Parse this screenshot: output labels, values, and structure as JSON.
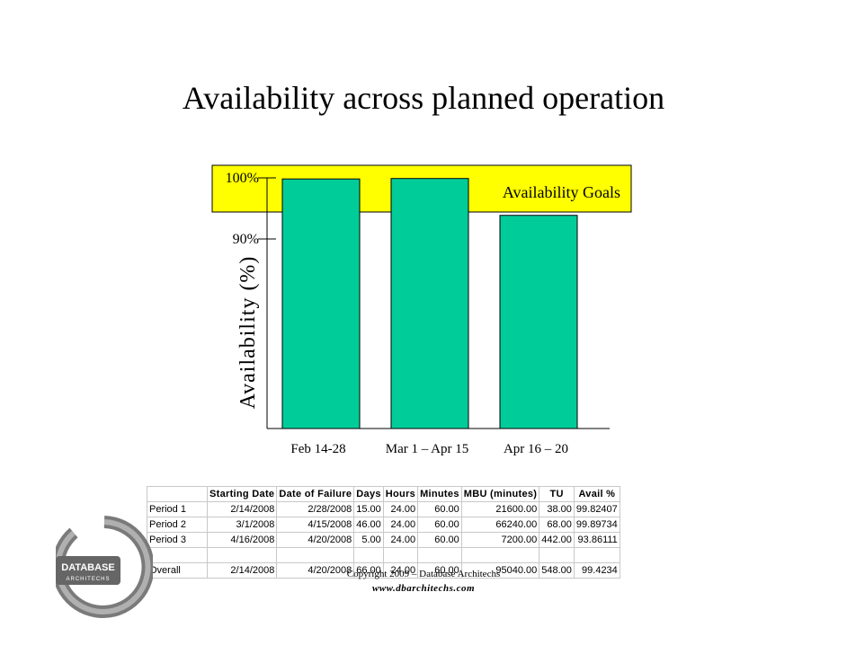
{
  "page_title": "Availability across planned operation",
  "chart_data": {
    "type": "bar",
    "ylabel": "Availability (%)",
    "categories": [
      "Feb 14-28",
      "Mar 1 – Apr 15",
      "Apr 16 – 20"
    ],
    "values": [
      99.82407,
      99.89734,
      93.86111
    ],
    "yticks": [
      "100%",
      "90%"
    ],
    "ytick_values": [
      100,
      90
    ],
    "goal_band_label": "Availability Goals",
    "goal_band_range": [
      99,
      101
    ],
    "colors": {
      "bar": "#00CC99",
      "goal_band": "#FFFF00"
    }
  },
  "table": {
    "headers": [
      "",
      "Starting Date",
      "Date of Failure",
      "Days",
      "Hours",
      "Minutes",
      "MBU (minutes)",
      "TU",
      "Avail %"
    ],
    "rows": [
      [
        "Period 1",
        "2/14/2008",
        "2/28/2008",
        "15.00",
        "24.00",
        "60.00",
        "21600.00",
        "38.00",
        "99.82407"
      ],
      [
        "Period 2",
        "3/1/2008",
        "4/15/2008",
        "46.00",
        "24.00",
        "60.00",
        "66240.00",
        "68.00",
        "99.89734"
      ],
      [
        "Period 3",
        "4/16/2008",
        "4/20/2008",
        "5.00",
        "24.00",
        "60.00",
        "7200.00",
        "442.00",
        "93.86111"
      ]
    ],
    "overall": [
      "Overall",
      "2/14/2008",
      "4/20/2008",
      "66.00",
      "24.00",
      "60.00",
      "95040.00",
      "548.00",
      "99.4234"
    ]
  },
  "footer": {
    "copyright": "Copyright 2009 – Database Architechs",
    "url": "www.dbarchitechs.com"
  },
  "logo": {
    "text_top": "DATABASE",
    "text_bottom": "ARCHITECHS",
    "icon": "database-architechs-logo"
  }
}
